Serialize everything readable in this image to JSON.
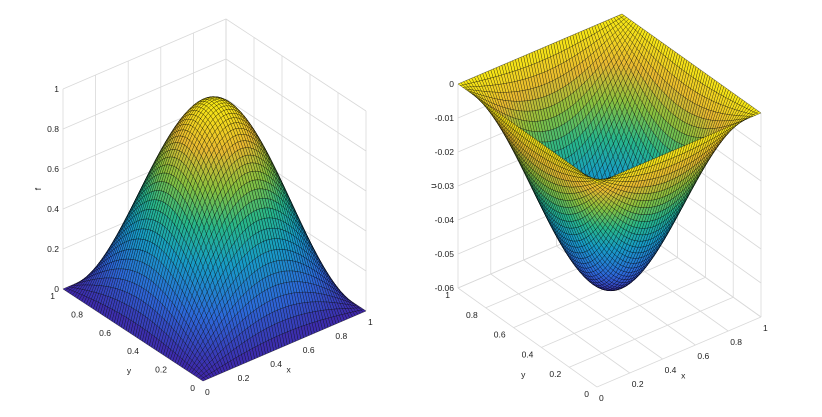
{
  "chart_data": [
    {
      "type": "surface",
      "function": "sin(pi*x)*sin(pi*y)",
      "grid_n": 60,
      "xlabel": "x",
      "ylabel": "y",
      "zlabel": "f",
      "xlim": [
        0,
        1
      ],
      "ylim": [
        0,
        1
      ],
      "zlim": [
        0,
        1
      ],
      "x_ticks": [
        "0",
        "0.2",
        "0.4",
        "0.6",
        "0.8",
        "1"
      ],
      "y_ticks": [
        "0",
        "0.2",
        "0.4",
        "0.6",
        "0.8",
        "1"
      ],
      "z_ticks": [
        "0",
        "0.2",
        "0.4",
        "0.6",
        "0.8",
        "1"
      ],
      "z_range": [
        0,
        1
      ],
      "grid": true,
      "colormap": "parula-like"
    },
    {
      "type": "surface",
      "function": "-0.0554*sin(pi*x)*sin(pi*y)",
      "grid_n": 60,
      "xlabel": "x",
      "ylabel": "y",
      "zlabel": "u",
      "xlim": [
        0,
        1
      ],
      "ylim": [
        0,
        1
      ],
      "zlim": [
        -0.06,
        0
      ],
      "x_ticks": [
        "0",
        "0.2",
        "0.4",
        "0.6",
        "0.8",
        "1"
      ],
      "y_ticks": [
        "0",
        "0.2",
        "0.4",
        "0.6",
        "0.8",
        "1"
      ],
      "z_ticks": [
        "0",
        "-0.01",
        "-0.02",
        "-0.03",
        "-0.04",
        "-0.05",
        "-0.06"
      ],
      "z_range": [
        -0.0554,
        0
      ],
      "grid": true,
      "colormap": "parula-like"
    }
  ]
}
